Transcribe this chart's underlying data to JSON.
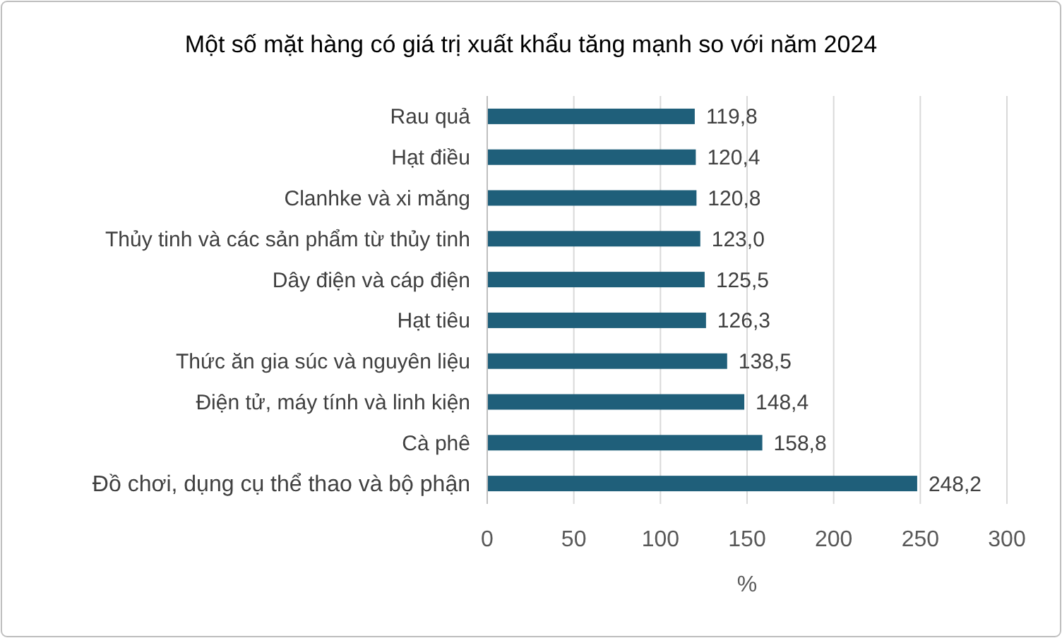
{
  "chart_data": {
    "type": "bar",
    "orientation": "horizontal",
    "title": "Một số mặt hàng có giá trị xuất khẩu tăng mạnh so với năm 2024",
    "xlabel": "%",
    "categories": [
      "Rau quả",
      "Hạt điều",
      "Clanhke và xi măng",
      "Thủy tinh và các sản phẩm từ thủy tinh",
      "Dây điện và cáp điện",
      "Hạt tiêu",
      "Thức ăn gia súc và nguyên liệu",
      "Điện tử, máy tính và linh kiện",
      "Cà phê",
      "Đồ chơi, dụng cụ thể thao và bộ phận"
    ],
    "values": [
      119.8,
      120.4,
      120.8,
      123.0,
      125.5,
      126.3,
      138.5,
      148.4,
      158.8,
      248.2
    ],
    "value_labels": [
      "119,8",
      "120,4",
      "120,8",
      "123,0",
      "125,5",
      "126,3",
      "138,5",
      "148,4",
      "158,8",
      "248,2"
    ],
    "color": "#1f5f7a",
    "xlim": [
      0,
      300
    ],
    "xticks": [
      0,
      50,
      100,
      150,
      200,
      250,
      300
    ],
    "grid": "x"
  }
}
